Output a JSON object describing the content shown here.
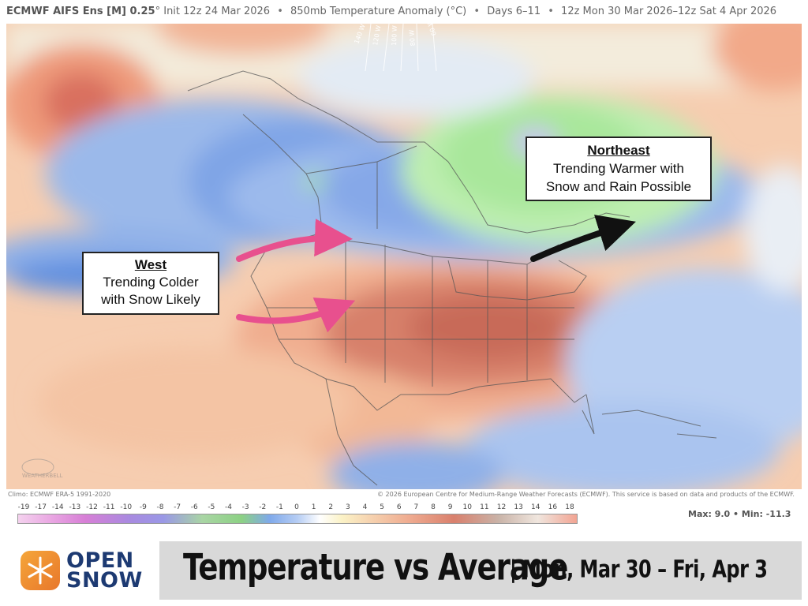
{
  "header": {
    "model": "ECMWF AIFS Ens [M] 0.25",
    "degree": "°",
    "init": "Init 12z 24 Mar 2026",
    "field": "850mb Temperature Anomaly (°C)",
    "period": "Days 6–11",
    "valid": "12z Mon 30 Mar 2026–12z Sat 4 Apr 2026"
  },
  "map": {
    "longitude_labels": [
      "140 W",
      "120 W",
      "100 W",
      "80 W",
      "60 W"
    ],
    "watermark": "WEATHERBELL",
    "colors": {
      "cold": "#6f9ae0",
      "very_cold": "#3f78d8",
      "warm": "#f2b08a",
      "hot": "#c96a55",
      "green": "#a9e89a"
    }
  },
  "callouts": {
    "west": {
      "title": "West",
      "line1": "Trending Colder",
      "line2": "with Snow Likely",
      "arrow_color": "#e8508e"
    },
    "northeast": {
      "title": "Northeast",
      "line1": "Trending Warmer with",
      "line2": "Snow and Rain Possible",
      "arrow_color": "#111111"
    }
  },
  "credits": {
    "climo": "Climo: ECMWF ERA-5 1991-2020",
    "copyright": "© 2026 European Centre for Medium-Range Weather Forecasts (ECMWF). This service is based on data and products of the ECMWF."
  },
  "scale": {
    "ticks": [
      "-19",
      "-17",
      "-14",
      "-13",
      "-12",
      "-11",
      "-10",
      "-9",
      "-8",
      "-7",
      "-6",
      "-5",
      "-4",
      "-3",
      "-2",
      "-1",
      "0",
      "1",
      "2",
      "3",
      "4",
      "5",
      "6",
      "7",
      "8",
      "9",
      "10",
      "11",
      "12",
      "13",
      "14",
      "16",
      "18"
    ],
    "max_label": "Max:",
    "max": "9.0",
    "min_label": "Min:",
    "min": "-11.3"
  },
  "banner": {
    "logo_line1": "OPEN",
    "logo_line2": "SNOW",
    "title": "Temperature vs Average",
    "subtitle": "| Mon, Mar 30 – Fri, Apr 3"
  }
}
